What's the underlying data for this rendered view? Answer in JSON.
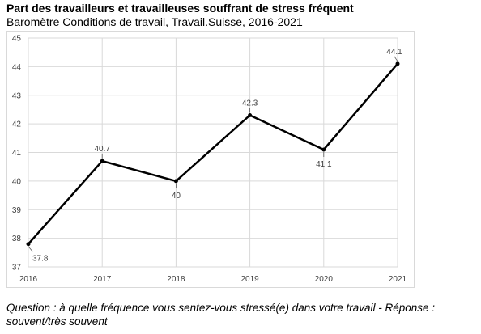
{
  "header": {
    "title": "Part des travailleurs et travailleuses souffrant de stress fréquent",
    "subtitle": "Baromètre Conditions de travail, Travail.Suisse, 2016-2021"
  },
  "footer": {
    "note": "Question : à quelle fréquence vous sentez-vous stressé(e) dans votre travail - Réponse : souvent/très souvent"
  },
  "chart_data": {
    "type": "line",
    "title": "Part des travailleurs et travailleuses souffrant de stress fréquent",
    "subtitle": "Baromètre Conditions de travail, Travail.Suisse, 2016-2021",
    "x": [
      2016,
      2017,
      2018,
      2019,
      2020,
      2021
    ],
    "x_tick_labels": [
      "2016",
      "2017",
      "2018",
      "2019",
      "2020",
      "2021"
    ],
    "series": [
      {
        "values": [
          37.8,
          40.7,
          40,
          42.3,
          41.1,
          44.1
        ],
        "data_labels": [
          "37.8",
          "40.7",
          "40",
          "42.3",
          "41.1",
          "44.1"
        ],
        "color": "#000000"
      }
    ],
    "ylim": [
      37,
      45
    ],
    "y_ticks": [
      37,
      38,
      39,
      40,
      41,
      42,
      43,
      44,
      45
    ],
    "y_tick_labels": [
      "37",
      "38",
      "39",
      "40",
      "41",
      "42",
      "43",
      "44",
      "45"
    ],
    "grid": true,
    "grid_color": "#d9d9d9",
    "legend": "none"
  }
}
